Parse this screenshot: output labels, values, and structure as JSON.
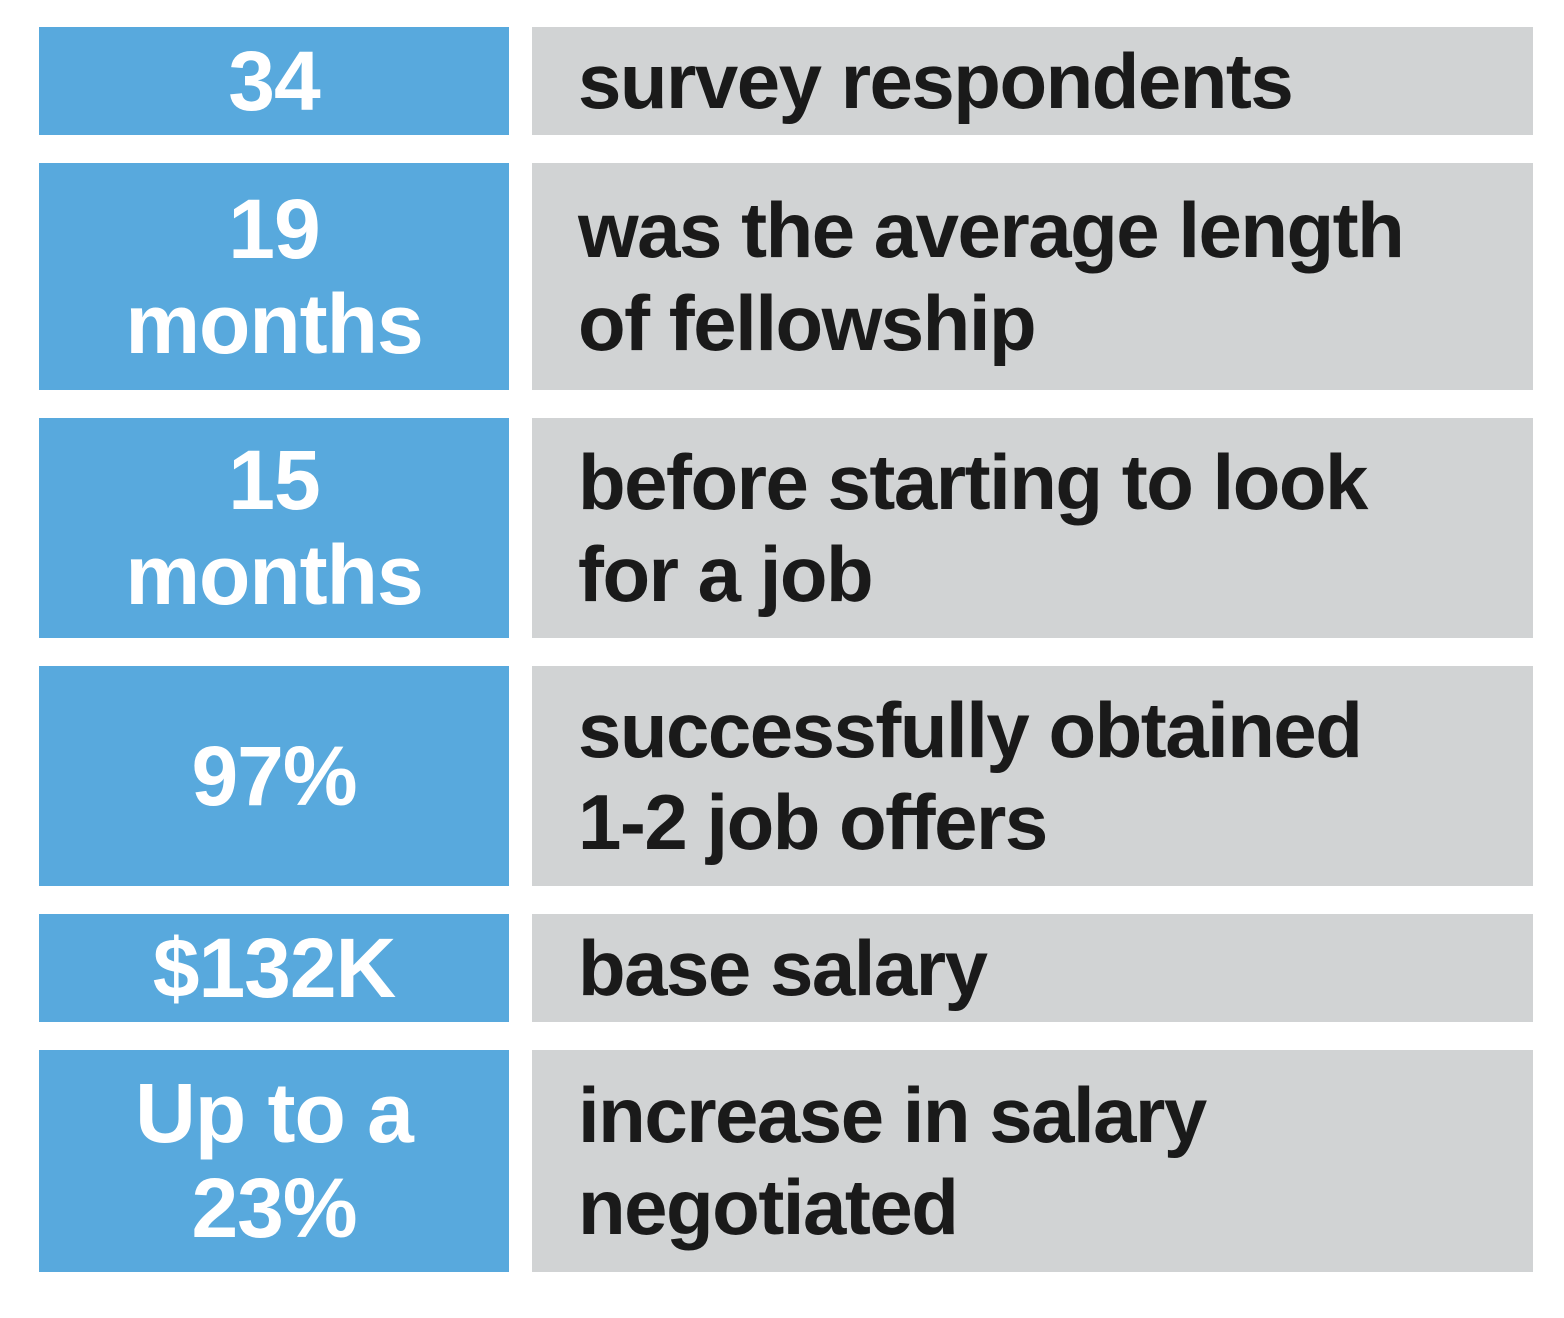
{
  "colors": {
    "accent_blue": "#58a9dd",
    "panel_gray": "#d1d3d4",
    "stat_text": "#ffffff",
    "desc_text": "#1a1a1a",
    "background": "#ffffff"
  },
  "rows": [
    {
      "stat": "34",
      "description": "survey respondents"
    },
    {
      "stat": "19\nmonths",
      "description": "was the average length\nof fellowship"
    },
    {
      "stat": "15\nmonths",
      "description": "before starting to look\nfor a job"
    },
    {
      "stat": "97%",
      "description": "successfully obtained\n1-2 job offers"
    },
    {
      "stat": "$132K",
      "description": "base salary"
    },
    {
      "stat": "Up to a\n23%",
      "description": "increase in salary\nnegotiated"
    }
  ],
  "chart_data": {
    "type": "table",
    "columns": [
      "statistic",
      "description"
    ],
    "rows": [
      [
        "34",
        "survey respondents"
      ],
      [
        "19 months",
        "was the average length of fellowship"
      ],
      [
        "15 months",
        "before starting to look for a job"
      ],
      [
        "97%",
        "successfully obtained 1-2 job offers"
      ],
      [
        "$132K",
        "base salary"
      ],
      [
        "Up to a 23%",
        "increase in salary negotiated"
      ]
    ]
  }
}
